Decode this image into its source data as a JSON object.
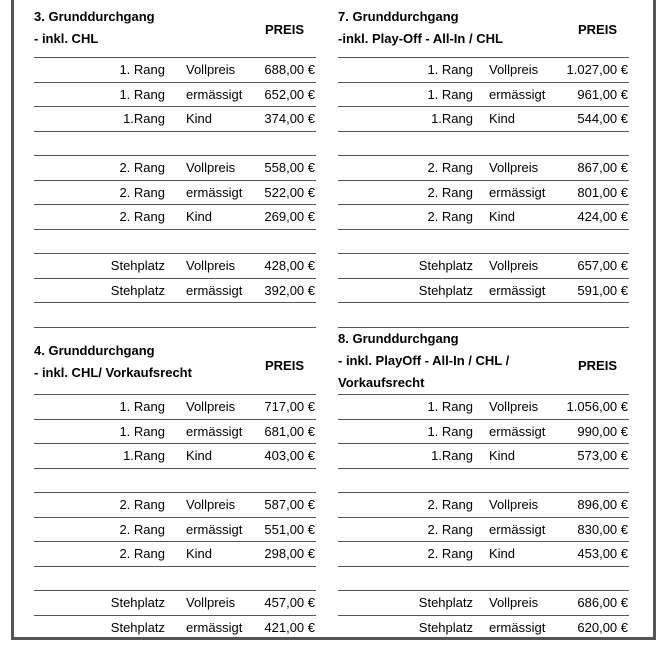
{
  "tables": [
    {
      "title": [
        "3. Grunddurchgang",
        "- inkl. CHL"
      ],
      "price_header": "PREIS",
      "rows": [
        [
          "1. Rang",
          "Vollpreis",
          "688,00 €"
        ],
        [
          "1. Rang",
          "ermässigt",
          "652,00 €"
        ],
        [
          "1.Rang",
          "Kind",
          "374,00 €"
        ],
        [
          "",
          "",
          ""
        ],
        [
          "2. Rang",
          "Vollpreis",
          "558,00 €"
        ],
        [
          "2. Rang",
          "ermässigt",
          "522,00 €"
        ],
        [
          "2. Rang",
          "Kind",
          "269,00 €"
        ],
        [
          "",
          "",
          ""
        ],
        [
          "Stehplatz",
          "Vollpreis",
          "428,00 €"
        ],
        [
          "Stehplatz",
          "ermässigt",
          "392,00 €"
        ],
        [
          "",
          "",
          ""
        ]
      ]
    },
    {
      "title": [
        "7. Grunddurchgang",
        "-inkl. Play-Off - All-In / CHL"
      ],
      "price_header": "PREIS",
      "rows": [
        [
          "1. Rang",
          "Vollpreis",
          "1.027,00 €"
        ],
        [
          "1. Rang",
          "ermässigt",
          "961,00 €"
        ],
        [
          "1.Rang",
          "Kind",
          "544,00 €"
        ],
        [
          "",
          "",
          ""
        ],
        [
          "2. Rang",
          "Vollpreis",
          "867,00 €"
        ],
        [
          "2. Rang",
          "ermässigt",
          "801,00 €"
        ],
        [
          "2. Rang",
          "Kind",
          "424,00 €"
        ],
        [
          "",
          "",
          ""
        ],
        [
          "Stehplatz",
          "Vollpreis",
          "657,00 €"
        ],
        [
          "Stehplatz",
          "ermässigt",
          "591,00 €"
        ],
        [
          "",
          "",
          ""
        ]
      ]
    },
    {
      "title": [
        "4. Grunddurchgang",
        "- inkl. CHL/ Vorkaufsrecht"
      ],
      "price_header": "PREIS",
      "rows": [
        [
          "1. Rang",
          "Vollpreis",
          "717,00 €"
        ],
        [
          "1. Rang",
          "ermässigt",
          "681,00 €"
        ],
        [
          "1.Rang",
          "Kind",
          "403,00 €"
        ],
        [
          "",
          "",
          ""
        ],
        [
          "2. Rang",
          "Vollpreis",
          "587,00 €"
        ],
        [
          "2. Rang",
          "ermässigt",
          "551,00 €"
        ],
        [
          "2. Rang",
          "Kind",
          "298,00 €"
        ],
        [
          "",
          "",
          ""
        ],
        [
          "Stehplatz",
          "Vollpreis",
          "457,00 €"
        ],
        [
          "Stehplatz",
          "ermässigt",
          "421,00 €"
        ]
      ]
    },
    {
      "title": [
        "8. Grunddurchgang",
        "- inkl.  PlayOff - All-In / CHL /",
        "Vorkaufsrecht"
      ],
      "price_header": "PREIS",
      "rows": [
        [
          "1. Rang",
          "Vollpreis",
          "1.056,00 €"
        ],
        [
          "1. Rang",
          "ermässigt",
          "990,00 €"
        ],
        [
          "1.Rang",
          "Kind",
          "573,00 €"
        ],
        [
          "",
          "",
          ""
        ],
        [
          "2. Rang",
          "Vollpreis",
          "896,00 €"
        ],
        [
          "2. Rang",
          "ermässigt",
          "830,00 €"
        ],
        [
          "2. Rang",
          "Kind",
          "453,00 €"
        ],
        [
          "",
          "",
          ""
        ],
        [
          "Stehplatz",
          "Vollpreis",
          "686,00 €"
        ],
        [
          "Stehplatz",
          "ermässigt",
          "620,00 €"
        ]
      ]
    }
  ]
}
